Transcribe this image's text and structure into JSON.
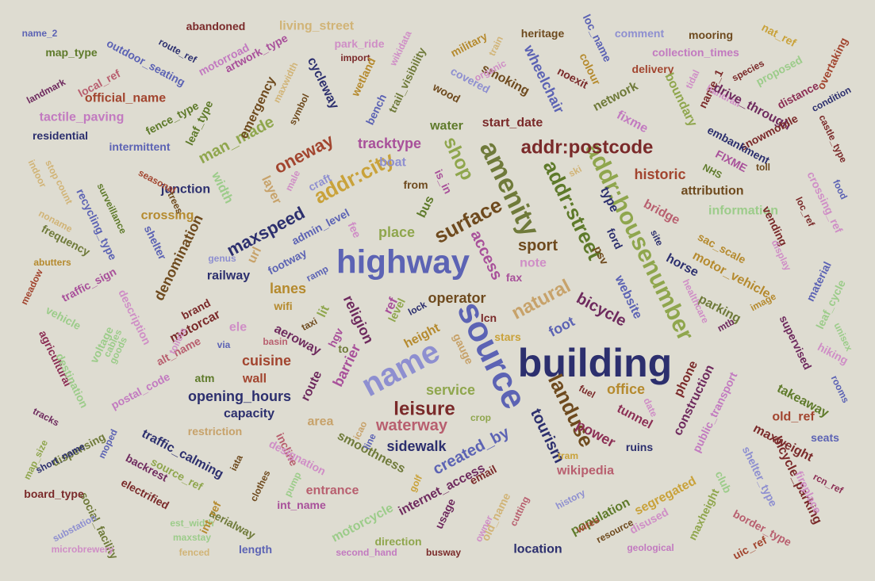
{
  "palette": {
    "navy": "#2c2f6e",
    "slate": "#5c63b4",
    "lavender": "#8e8fd0",
    "olive": "#6f7a3a",
    "sage": "#8fa64d",
    "moss": "#5e7a2a",
    "brown": "#6e4a1e",
    "ochre": "#b58a2e",
    "gold": "#c9a23a",
    "maroon": "#7a2a2a",
    "rust": "#a2452f",
    "rose": "#b85f6f",
    "mauve": "#a8509a",
    "pink": "#cf8ec6",
    "plum": "#6e2a5e",
    "tan": "#c7a26a",
    "sand": "#d1b477",
    "mint": "#9ccc8a",
    "orchid": "#c27ac0",
    "wine": "#8c2f55"
  },
  "words": [
    {
      "t": "building",
      "c": "navy"
    },
    {
      "t": "highway",
      "c": "slate"
    },
    {
      "t": "source",
      "c": "slate"
    },
    {
      "t": "name",
      "c": "lavender"
    },
    {
      "t": "amenity",
      "c": "olive"
    },
    {
      "t": "addr:housenumber",
      "c": "sage"
    },
    {
      "t": "addr:street",
      "c": "moss"
    },
    {
      "t": "addr:postcode",
      "c": "maroon"
    },
    {
      "t": "addr:city",
      "c": "gold"
    },
    {
      "t": "surface",
      "c": "brown"
    },
    {
      "t": "shop",
      "c": "sage"
    },
    {
      "t": "landuse",
      "c": "brown"
    },
    {
      "t": "leisure",
      "c": "maroon"
    },
    {
      "t": "natural",
      "c": "tan"
    },
    {
      "t": "oneway",
      "c": "rust"
    },
    {
      "t": "maxspeed",
      "c": "navy"
    },
    {
      "t": "access",
      "c": "mauve"
    },
    {
      "t": "tourism",
      "c": "navy"
    },
    {
      "t": "waterway",
      "c": "rose"
    },
    {
      "t": "created_by",
      "c": "slate"
    },
    {
      "t": "operator",
      "c": "brown"
    },
    {
      "t": "place",
      "c": "sage"
    },
    {
      "t": "man_made",
      "c": "sage"
    },
    {
      "t": "layer",
      "c": "tan"
    },
    {
      "t": "historic",
      "c": "rust"
    },
    {
      "t": "bicycle",
      "c": "plum"
    },
    {
      "t": "foot",
      "c": "slate"
    },
    {
      "t": "sport",
      "c": "brown"
    },
    {
      "t": "website",
      "c": "slate"
    },
    {
      "t": "barrier",
      "c": "mauve"
    },
    {
      "t": "religion",
      "c": "plum"
    },
    {
      "t": "denomination",
      "c": "brown"
    },
    {
      "t": "service",
      "c": "sage"
    },
    {
      "t": "office",
      "c": "ochre"
    },
    {
      "t": "power",
      "c": "wine"
    },
    {
      "t": "tunnel",
      "c": "wine"
    },
    {
      "t": "bridge",
      "c": "rose"
    },
    {
      "t": "horse",
      "c": "navy"
    },
    {
      "t": "motor_vehicle",
      "c": "ochre"
    },
    {
      "t": "parking",
      "c": "olive"
    },
    {
      "t": "construction",
      "c": "plum"
    },
    {
      "t": "public_transport",
      "c": "orchid"
    },
    {
      "t": "phone",
      "c": "maroon"
    },
    {
      "t": "smoothness",
      "c": "olive"
    },
    {
      "t": "cuisine",
      "c": "rust"
    },
    {
      "t": "opening_hours",
      "c": "navy"
    },
    {
      "t": "capacity",
      "c": "navy"
    },
    {
      "t": "sidewalk",
      "c": "navy"
    },
    {
      "t": "lanes",
      "c": "ochre"
    },
    {
      "t": "railway",
      "c": "navy"
    },
    {
      "t": "junction",
      "c": "navy"
    },
    {
      "t": "crossing",
      "c": "ochre"
    },
    {
      "t": "shelter",
      "c": "slate"
    },
    {
      "t": "admin_level",
      "c": "slate"
    },
    {
      "t": "fee",
      "c": "pink"
    },
    {
      "t": "note",
      "c": "pink"
    },
    {
      "t": "type",
      "c": "navy"
    },
    {
      "t": "height",
      "c": "ochre"
    },
    {
      "t": "level",
      "c": "sage"
    },
    {
      "t": "ref",
      "c": "mauve"
    },
    {
      "t": "aeroway",
      "c": "plum"
    },
    {
      "t": "route",
      "c": "plum"
    },
    {
      "t": "wall",
      "c": "rust"
    },
    {
      "t": "atm",
      "c": "moss"
    },
    {
      "t": "ele",
      "c": "pink"
    },
    {
      "t": "lit",
      "c": "sage"
    },
    {
      "t": "hgv",
      "c": "mauve"
    },
    {
      "t": "brand",
      "c": "maroon"
    },
    {
      "t": "motorcar",
      "c": "maroon"
    },
    {
      "t": "description",
      "c": "pink"
    },
    {
      "t": "alt_name",
      "c": "rose"
    },
    {
      "t": "voltage",
      "c": "mint"
    },
    {
      "t": "postal_code",
      "c": "orchid"
    },
    {
      "t": "traffic_calming",
      "c": "navy"
    },
    {
      "t": "source_ref",
      "c": "sage"
    },
    {
      "t": "incline",
      "c": "rose"
    },
    {
      "t": "designation",
      "c": "pink"
    },
    {
      "t": "restriction",
      "c": "tan"
    },
    {
      "t": "area",
      "c": "tan"
    },
    {
      "t": "entrance",
      "c": "rose"
    },
    {
      "t": "int_name",
      "c": "mauve"
    },
    {
      "t": "internet_access",
      "c": "plum"
    },
    {
      "t": "email",
      "c": "maroon"
    },
    {
      "t": "usage",
      "c": "plum"
    },
    {
      "t": "wikipedia",
      "c": "rose"
    },
    {
      "t": "population",
      "c": "moss"
    },
    {
      "t": "segregated",
      "c": "gold"
    },
    {
      "t": "maxheight",
      "c": "sage"
    },
    {
      "t": "ruins",
      "c": "navy"
    },
    {
      "t": "motorcycle",
      "c": "mint"
    },
    {
      "t": "direction",
      "c": "sage"
    },
    {
      "t": "location",
      "c": "navy"
    },
    {
      "t": "aerialway",
      "c": "olive"
    },
    {
      "t": "electrified",
      "c": "maroon"
    },
    {
      "t": "backrest",
      "c": "plum"
    },
    {
      "t": "social_facility",
      "c": "olive"
    },
    {
      "t": "dispensing",
      "c": "olive"
    },
    {
      "t": "short_name",
      "c": "navy"
    },
    {
      "t": "board_type",
      "c": "maroon"
    },
    {
      "t": "substation",
      "c": "lavender"
    },
    {
      "t": "microbrewery",
      "c": "pink"
    },
    {
      "t": "length",
      "c": "slate"
    },
    {
      "t": "maxstay",
      "c": "mint"
    },
    {
      "t": "est_width",
      "c": "mint"
    },
    {
      "t": "fenced",
      "c": "sand"
    },
    {
      "t": "int_ref",
      "c": "ochre"
    },
    {
      "t": "second_hand",
      "c": "orchid"
    },
    {
      "t": "busway",
      "c": "maroon"
    },
    {
      "t": "geological",
      "c": "orchid"
    },
    {
      "t": "disused",
      "c": "pink"
    },
    {
      "t": "resource",
      "c": "brown"
    },
    {
      "t": "wires",
      "c": "rust"
    },
    {
      "t": "history",
      "c": "lavender"
    },
    {
      "t": "old_name",
      "c": "sand"
    },
    {
      "t": "owner",
      "c": "pink"
    },
    {
      "t": "cutting",
      "c": "rose"
    },
    {
      "t": "tram",
      "c": "gold"
    },
    {
      "t": "crop",
      "c": "sage"
    },
    {
      "t": "icao",
      "c": "tan"
    },
    {
      "t": "line",
      "c": "slate"
    },
    {
      "t": "golf",
      "c": "gold"
    },
    {
      "t": "pump",
      "c": "mint"
    },
    {
      "t": "clothes",
      "c": "brown"
    },
    {
      "t": "iata",
      "c": "brown"
    },
    {
      "t": "recycling_type",
      "c": "slate"
    },
    {
      "t": "surveillance",
      "c": "moss"
    },
    {
      "t": "frequency",
      "c": "olive"
    },
    {
      "t": "traffic_sign",
      "c": "mauve"
    },
    {
      "t": "abutters",
      "c": "ochre"
    },
    {
      "t": "meadow",
      "c": "rust"
    },
    {
      "t": "vehicle",
      "c": "mint"
    },
    {
      "t": "agricultural",
      "c": "wine"
    },
    {
      "t": "destination",
      "c": "mint"
    },
    {
      "t": "goods",
      "c": "mint"
    },
    {
      "t": "cables",
      "c": "mint"
    },
    {
      "t": "toilets",
      "c": "pink"
    },
    {
      "t": "via",
      "c": "slate"
    },
    {
      "t": "tracks",
      "c": "plum"
    },
    {
      "t": "map_size",
      "c": "sage"
    },
    {
      "t": "moped",
      "c": "slate"
    },
    {
      "t": "intermittent",
      "c": "slate"
    },
    {
      "t": "residential",
      "c": "navy"
    },
    {
      "t": "tactile_paving",
      "c": "orchid"
    },
    {
      "t": "landmark",
      "c": "plum"
    },
    {
      "t": "local_ref",
      "c": "rose"
    },
    {
      "t": "official_name",
      "c": "rust"
    },
    {
      "t": "map_type",
      "c": "moss"
    },
    {
      "t": "name_2",
      "c": "slate"
    },
    {
      "t": "outdoor_seating",
      "c": "slate"
    },
    {
      "t": "route_ref",
      "c": "navy"
    },
    {
      "t": "abandoned",
      "c": "maroon"
    },
    {
      "t": "motorroad",
      "c": "orchid"
    },
    {
      "t": "artwork_type",
      "c": "mauve"
    },
    {
      "t": "living_street",
      "c": "sand"
    },
    {
      "t": "park_ride",
      "c": "pink"
    },
    {
      "t": "import",
      "c": "maroon"
    },
    {
      "t": "wikidata",
      "c": "pink"
    },
    {
      "t": "fence_type",
      "c": "moss"
    },
    {
      "t": "leaf_type",
      "c": "moss"
    },
    {
      "t": "emergency",
      "c": "brown"
    },
    {
      "t": "maxwidth",
      "c": "sand"
    },
    {
      "t": "symbol",
      "c": "brown"
    },
    {
      "t": "cycleway",
      "c": "navy"
    },
    {
      "t": "wetland",
      "c": "ochre"
    },
    {
      "t": "bench",
      "c": "slate"
    },
    {
      "t": "trail_visibility",
      "c": "olive"
    },
    {
      "t": "military",
      "c": "ochre"
    },
    {
      "t": "train",
      "c": "sand"
    },
    {
      "t": "covered",
      "c": "lavender"
    },
    {
      "t": "smoking",
      "c": "brown"
    },
    {
      "t": "organic",
      "c": "pink"
    },
    {
      "t": "wood",
      "c": "brown"
    },
    {
      "t": "water",
      "c": "moss"
    },
    {
      "t": "start_date",
      "c": "maroon"
    },
    {
      "t": "wheelchair",
      "c": "slate"
    },
    {
      "t": "noexit",
      "c": "maroon"
    },
    {
      "t": "heritage",
      "c": "brown"
    },
    {
      "t": "loc_name",
      "c": "slate"
    },
    {
      "t": "colour",
      "c": "ochre"
    },
    {
      "t": "network",
      "c": "olive"
    },
    {
      "t": "comment",
      "c": "lavender"
    },
    {
      "t": "collection_times",
      "c": "orchid"
    },
    {
      "t": "delivery",
      "c": "rust"
    },
    {
      "t": "mooring",
      "c": "brown"
    },
    {
      "t": "nat_ref",
      "c": "gold"
    },
    {
      "t": "overtaking",
      "c": "rust"
    },
    {
      "t": "proposed",
      "c": "mint"
    },
    {
      "t": "species",
      "c": "maroon"
    },
    {
      "t": "tidal",
      "c": "pink"
    },
    {
      "t": "name_1",
      "c": "maroon"
    },
    {
      "t": "boundary",
      "c": "sage"
    },
    {
      "t": "fixme",
      "c": "orchid"
    },
    {
      "t": "handrail",
      "c": "pink"
    },
    {
      "t": "drive_through",
      "c": "plum"
    },
    {
      "t": "distance",
      "c": "wine"
    },
    {
      "t": "condition",
      "c": "navy"
    },
    {
      "t": "castle_type",
      "c": "maroon"
    },
    {
      "t": "snowmobile",
      "c": "maroon"
    },
    {
      "t": "embankment",
      "c": "navy"
    },
    {
      "t": "FIXME",
      "c": "mauve"
    },
    {
      "t": "toll",
      "c": "brown"
    },
    {
      "t": "NHS",
      "c": "moss"
    },
    {
      "t": "attribution",
      "c": "brown"
    },
    {
      "t": "information",
      "c": "mint"
    },
    {
      "t": "crossing_ref",
      "c": "pink"
    },
    {
      "t": "food",
      "c": "slate"
    },
    {
      "t": "loc_ref",
      "c": "maroon"
    },
    {
      "t": "vending",
      "c": "maroon"
    },
    {
      "t": "sac_scale",
      "c": "ochre"
    },
    {
      "t": "display",
      "c": "pink"
    },
    {
      "t": "material",
      "c": "slate"
    },
    {
      "t": "image",
      "c": "ochre"
    },
    {
      "t": "leaf_cycle",
      "c": "mint"
    },
    {
      "t": "unisex",
      "c": "mint"
    },
    {
      "t": "healthcare",
      "c": "pink"
    },
    {
      "t": "mtb",
      "c": "plum"
    },
    {
      "t": "supervised",
      "c": "plum"
    },
    {
      "t": "hiking",
      "c": "pink"
    },
    {
      "t": "rooms",
      "c": "slate"
    },
    {
      "t": "takeaway",
      "c": "moss"
    },
    {
      "t": "old_ref",
      "c": "rust"
    },
    {
      "t": "seats",
      "c": "slate"
    },
    {
      "t": "maxweight",
      "c": "maroon"
    },
    {
      "t": "shelter_type",
      "c": "lavender"
    },
    {
      "t": "bicycle_parking",
      "c": "maroon"
    },
    {
      "t": "fireplace",
      "c": "pink"
    },
    {
      "t": "rcn_ref",
      "c": "wine"
    },
    {
      "t": "club",
      "c": "mint"
    },
    {
      "t": "border_type",
      "c": "rose"
    },
    {
      "t": "uic_ref",
      "c": "rust"
    },
    {
      "t": "fuel",
      "c": "maroon"
    },
    {
      "t": "date",
      "c": "pink"
    },
    {
      "t": "stars",
      "c": "gold"
    },
    {
      "t": "lcn",
      "c": "maroon"
    },
    {
      "t": "fax",
      "c": "mauve"
    },
    {
      "t": "psv",
      "c": "brown"
    },
    {
      "t": "site",
      "c": "navy"
    },
    {
      "t": "ford",
      "c": "navy"
    },
    {
      "t": "bus",
      "c": "moss"
    },
    {
      "t": "from",
      "c": "brown"
    },
    {
      "t": "is_in",
      "c": "mauve"
    },
    {
      "t": "boat",
      "c": "lavender"
    },
    {
      "t": "craft",
      "c": "lavender"
    },
    {
      "t": "male",
      "c": "pink"
    },
    {
      "t": "tracktype",
      "c": "mauve"
    },
    {
      "t": "width",
      "c": "mint"
    },
    {
      "t": "url",
      "c": "tan"
    },
    {
      "t": "footway",
      "c": "slate"
    },
    {
      "t": "ramp",
      "c": "slate"
    },
    {
      "t": "genus",
      "c": "lavender"
    },
    {
      "t": "wifi",
      "c": "ochre"
    },
    {
      "t": "taxi",
      "c": "brown"
    },
    {
      "t": "lock",
      "c": "navy"
    },
    {
      "t": "basin",
      "c": "rose"
    },
    {
      "t": "to",
      "c": "olive"
    },
    {
      "t": "gauge",
      "c": "tan"
    },
    {
      "t": "seasonal",
      "c": "rust"
    },
    {
      "t": "trees",
      "c": "brown"
    },
    {
      "t": "stop",
      "c": "sand"
    },
    {
      "t": "count",
      "c": "sand"
    },
    {
      "t": "noname",
      "c": "sand"
    },
    {
      "t": "indoor",
      "c": "sand"
    },
    {
      "t": "ski",
      "c": "sand"
    }
  ]
}
